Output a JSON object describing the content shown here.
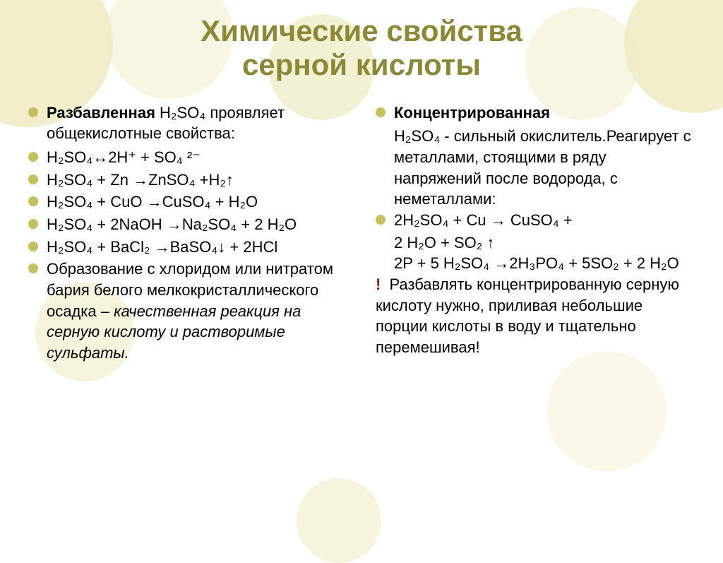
{
  "colors": {
    "title": "#8b8838",
    "bullet": "#c4c060",
    "text": "#000000",
    "warn": "#7a1a1a",
    "circle_dark": "#e8e4a8",
    "circle_light": "#f0eec8",
    "background": "#ffffff"
  },
  "typography": {
    "title_fontsize": 42,
    "body_fontsize": 22,
    "font_family": "Arial"
  },
  "title_line1": "Химические свойства",
  "title_line2": "серной кислоты",
  "left": {
    "heading_bold": "Разбавленная",
    "heading_rest": " H₂SO₄ проявляет общекислотные свойства:",
    "items": [
      "H₂SO₄↔2H⁺ + SO₄ ²⁻",
      "H₂SO₄ + Zn →ZnSO₄ +H₂↑",
      "H₂SO₄ + CuO →CuSO₄ + H₂O",
      "H₂SO₄ + 2NaOH →Na₂SO₄ + 2 H₂O",
      "H₂SO₄ + BaCl₂ →BaSO₄↓ + 2HCl"
    ],
    "tail_plain": "Образование с хлоридом или нитратом бария белого мелкокристаллического осадка – ",
    "tail_italic": "качественная реакция на серную кислоту и растворимые сульфаты."
  },
  "right": {
    "heading_bold": "Концентрированная",
    "heading_rest": "H₂SO₄  - сильный окислитель.Реагирует с металлами, стоящими в ряду напряжений после водорода, с неметаллами:",
    "eq1_a": "2H₂SO₄ + Cu → CuSO₄ +",
    "eq1_b": "2 H₂O + SO₂ ↑",
    "eq2_a": "2P + 5 H₂SO₄ →2H₃PO₄ + 5SO₂ + 2 H₂O",
    "warn_mark": "!",
    "warn_text": " Разбавлять концентрированную серную кислоту нужно, приливая небольшие порции кислоты в воду и тщательно перемешивая!"
  }
}
